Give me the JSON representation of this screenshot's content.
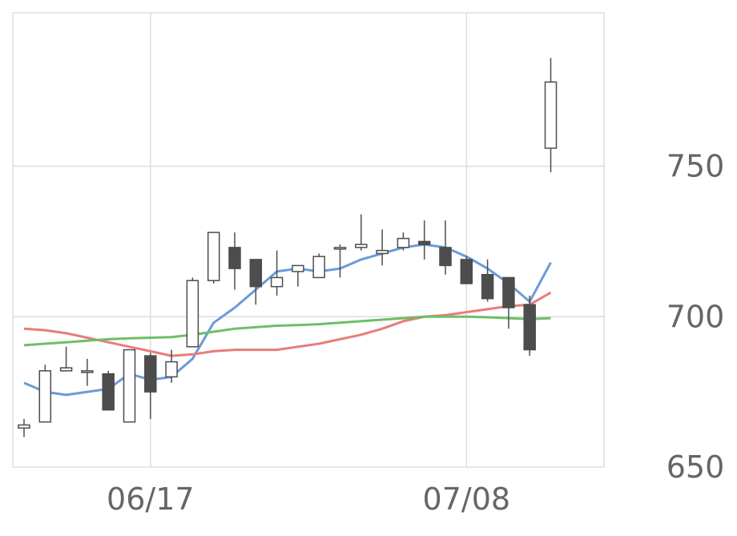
{
  "chart_data": {
    "type": "candlestick",
    "title": "",
    "xlabel": "",
    "ylabel": "",
    "ylim": [
      650,
      801
    ],
    "y_ticks": [
      650,
      700,
      750
    ],
    "x_ticks": [
      {
        "label": "06/17",
        "index": 6
      },
      {
        "label": "07/08",
        "index": 21
      }
    ],
    "grid": true,
    "colors": {
      "up_fill": "#ffffff",
      "down_fill": "#4d4d4d",
      "wick": "#4d4d4d",
      "grid": "#dddddd",
      "ma_short": "#6a9bd8",
      "ma_mid": "#e87c7c",
      "ma_long": "#6dbf67"
    },
    "candles": [
      {
        "o": 663,
        "h": 666,
        "l": 660,
        "c": 664
      },
      {
        "o": 665,
        "h": 684,
        "l": 665,
        "c": 682
      },
      {
        "o": 682,
        "h": 690,
        "l": 682,
        "c": 683
      },
      {
        "o": 682,
        "h": 686,
        "l": 677,
        "c": 682
      },
      {
        "o": 681,
        "h": 682,
        "l": 669,
        "c": 669
      },
      {
        "o": 665,
        "h": 689,
        "l": 665,
        "c": 689
      },
      {
        "o": 687,
        "h": 688,
        "l": 666,
        "c": 675
      },
      {
        "o": 680,
        "h": 689,
        "l": 678,
        "c": 685
      },
      {
        "o": 690,
        "h": 713,
        "l": 690,
        "c": 712
      },
      {
        "o": 712,
        "h": 728,
        "l": 711,
        "c": 728
      },
      {
        "o": 723,
        "h": 728,
        "l": 709,
        "c": 716
      },
      {
        "o": 719,
        "h": 719,
        "l": 704,
        "c": 710
      },
      {
        "o": 710,
        "h": 722,
        "l": 707,
        "c": 713
      },
      {
        "o": 715,
        "h": 717,
        "l": 710,
        "c": 717
      },
      {
        "o": 713,
        "h": 721,
        "l": 713,
        "c": 720
      },
      {
        "o": 723,
        "h": 724,
        "l": 713,
        "c": 723
      },
      {
        "o": 723,
        "h": 734,
        "l": 722,
        "c": 724
      },
      {
        "o": 721,
        "h": 729,
        "l": 717,
        "c": 722
      },
      {
        "o": 723,
        "h": 728,
        "l": 722,
        "c": 726
      },
      {
        "o": 725,
        "h": 732,
        "l": 719,
        "c": 724
      },
      {
        "o": 723,
        "h": 732,
        "l": 714,
        "c": 717
      },
      {
        "o": 719,
        "h": 720,
        "l": 711,
        "c": 711
      },
      {
        "o": 714,
        "h": 719,
        "l": 705,
        "c": 706
      },
      {
        "o": 713,
        "h": 713,
        "l": 696,
        "c": 703
      },
      {
        "o": 704,
        "h": 707,
        "l": 687,
        "c": 689
      },
      {
        "o": 756,
        "h": 786,
        "l": 748,
        "c": 778
      }
    ],
    "series": [
      {
        "key": "ma_short",
        "values": [
          678,
          675,
          674,
          675,
          676,
          681,
          679,
          680,
          686,
          698,
          703,
          709,
          715,
          716,
          715,
          716,
          719,
          721,
          723,
          724,
          723,
          720,
          716,
          711,
          705,
          718
        ]
      },
      {
        "key": "ma_mid",
        "values": [
          696,
          695.5,
          694.5,
          693,
          691.5,
          690,
          688.5,
          687,
          687.5,
          688.5,
          689,
          689,
          689,
          690,
          691,
          692.5,
          694,
          696,
          698.5,
          700,
          700.5,
          701.5,
          702.5,
          703.5,
          704,
          708
        ]
      },
      {
        "key": "ma_long",
        "values": [
          690.5,
          691,
          691.5,
          692,
          692.5,
          692.8,
          693,
          693.2,
          694,
          695,
          696,
          696.5,
          697,
          697.2,
          697.5,
          698,
          698.5,
          699,
          699.5,
          700,
          700,
          700,
          699.8,
          699.5,
          699.2,
          699.5
        ]
      }
    ]
  }
}
